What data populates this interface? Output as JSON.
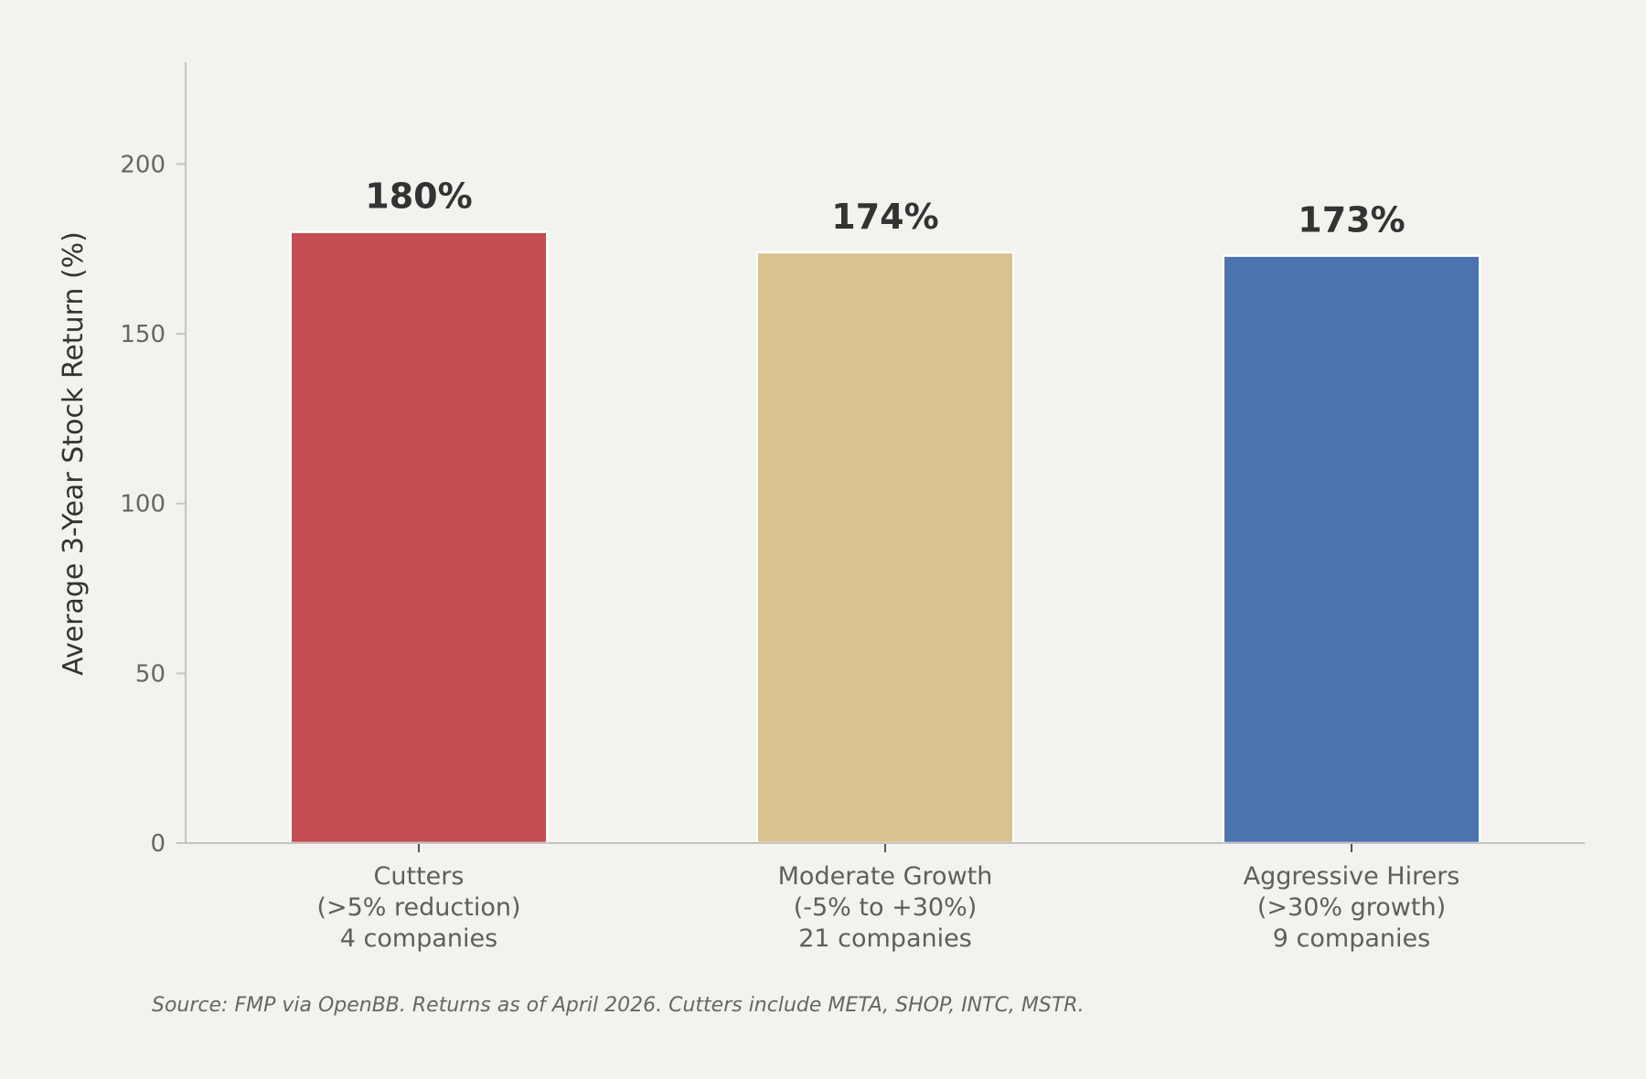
{
  "chart_data": {
    "type": "bar",
    "title": "",
    "xlabel": "",
    "ylabel": "Average 3-Year Stock Return (%)",
    "ylim": [
      0,
      230
    ],
    "yticks": [
      0,
      50,
      100,
      150,
      200
    ],
    "grid": false,
    "categories": [
      [
        "Cutters",
        "(>5% reduction)",
        "4 companies"
      ],
      [
        "Moderate Growth",
        "(-5% to +30%)",
        "21 companies"
      ],
      [
        "Aggressive Hirers",
        "(>30% growth)",
        "9 companies"
      ]
    ],
    "values": [
      180,
      174,
      173
    ],
    "data_labels": [
      "180%",
      "174%",
      "173%"
    ],
    "colors": [
      "#c44e52",
      "#d8c38f",
      "#4c72b0"
    ]
  },
  "footer": {
    "source": "Source: FMP via OpenBB. Returns as of April 2026. Cutters include META, SHOP, INTC, MSTR."
  }
}
